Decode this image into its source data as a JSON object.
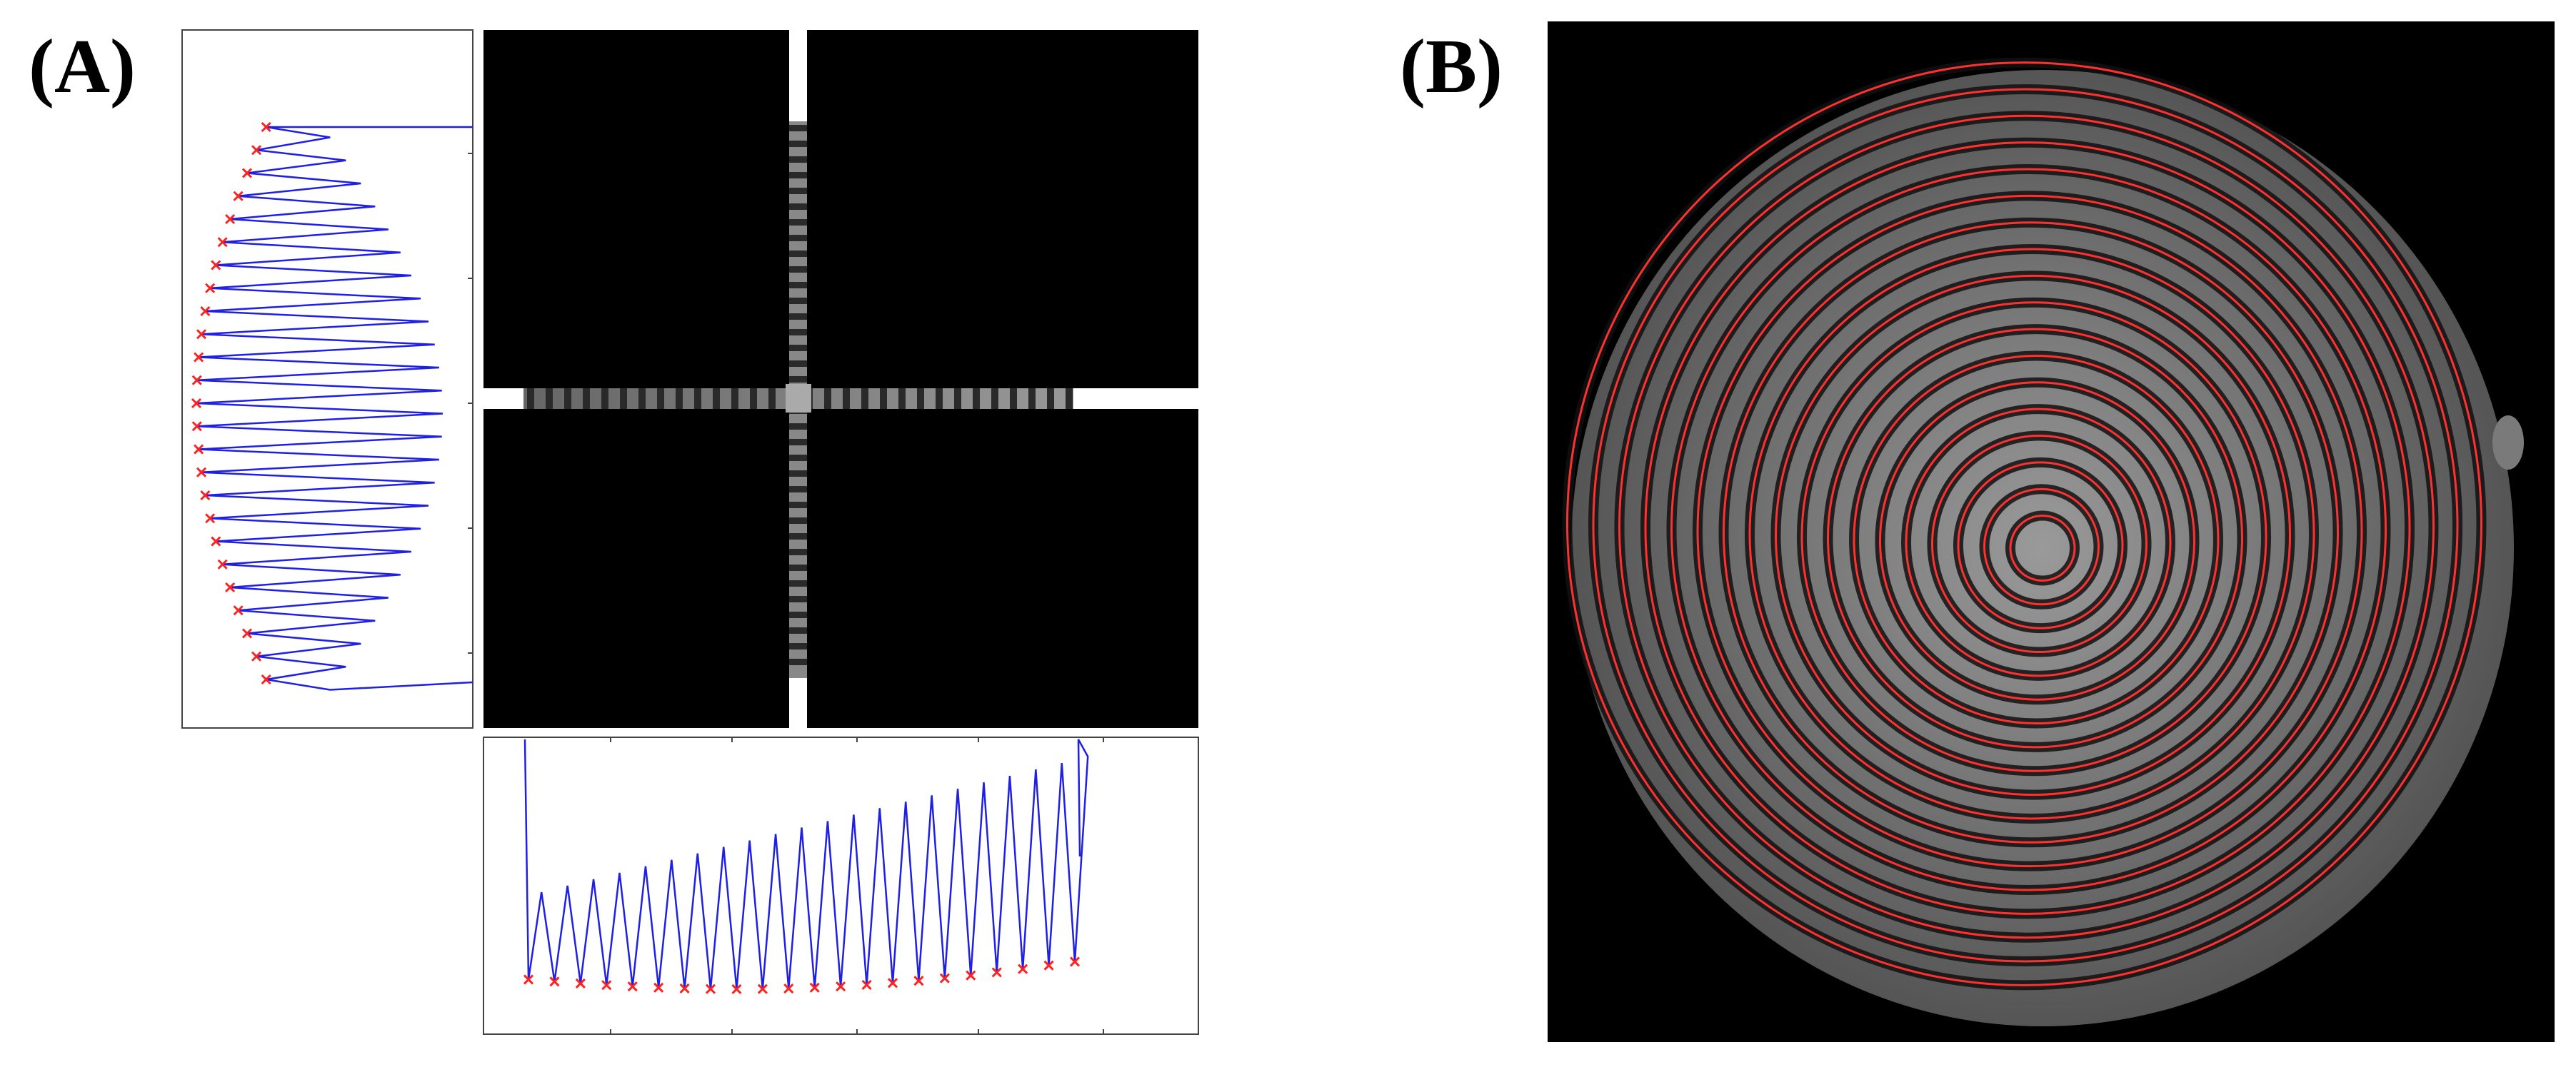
{
  "figure": {
    "panel_a_label": "(A)",
    "panel_b_label": "(B)",
    "colors": {
      "profile_line": "#1f1fe6",
      "minima_marker": "#ff2020",
      "fit_circle": "#ff3030",
      "background": "#000000"
    },
    "panel_a": {
      "left_profile_minima_count": 25,
      "bottom_profile_minima_count": 22
    },
    "panel_b": {
      "fitted_ring_count": 18
    }
  }
}
